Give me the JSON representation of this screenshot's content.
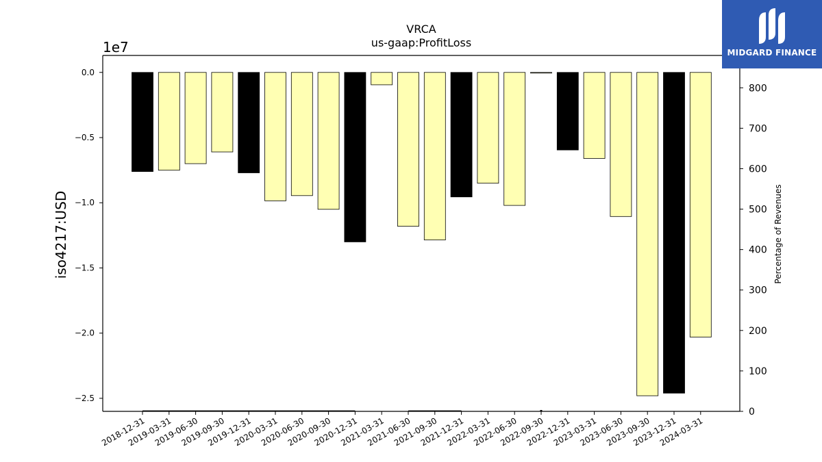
{
  "chart_data": {
    "type": "bar",
    "title": "VRCA",
    "subtitle": "us-gaap:ProfitLoss",
    "ylabel": "iso4217:USD",
    "y_offset_label": "1e7",
    "y2label": "Percentage of Revenues",
    "ylim": [
      -26000000,
      1300000
    ],
    "y2lim": [
      0,
      880
    ],
    "yticks": [
      {
        "v": 0,
        "label": "0.0"
      },
      {
        "v": -5000000,
        "label": "−0.5"
      },
      {
        "v": -10000000,
        "label": "−1.0"
      },
      {
        "v": -15000000,
        "label": "−1.5"
      },
      {
        "v": -20000000,
        "label": "−2.0"
      },
      {
        "v": -25000000,
        "label": "−2.5"
      }
    ],
    "y2ticks": [
      {
        "v": 0,
        "label": "0"
      },
      {
        "v": 100,
        "label": "100"
      },
      {
        "v": 200,
        "label": "200"
      },
      {
        "v": 300,
        "label": "300"
      },
      {
        "v": 400,
        "label": "400"
      },
      {
        "v": 500,
        "label": "500"
      },
      {
        "v": 600,
        "label": "600"
      },
      {
        "v": 700,
        "label": "700"
      },
      {
        "v": 800,
        "label": "800"
      }
    ],
    "categories": [
      "2018-12-31",
      "2019-03-31",
      "2019-06-30",
      "2019-09-30",
      "2019-12-31",
      "2020-03-31",
      "2020-06-30",
      "2020-09-30",
      "2020-12-31",
      "2021-03-31",
      "2021-06-30",
      "2021-09-30",
      "2021-12-31",
      "2022-03-31",
      "2022-06-30",
      "2022-09-30",
      "2022-12-31",
      "2023-03-31",
      "2023-06-30",
      "2023-09-30",
      "2023-12-31",
      "2024-03-31"
    ],
    "values": [
      -7600000,
      -7500000,
      -7000000,
      -6100000,
      -7700000,
      -9850000,
      -9450000,
      -10500000,
      -13000000,
      -950000,
      -11800000,
      -12850000,
      -9550000,
      -8500000,
      -10200000,
      -50000,
      -5950000,
      -6600000,
      -11050000,
      -24800000,
      -24600000,
      -20300000
    ],
    "annual": [
      true,
      false,
      false,
      false,
      true,
      false,
      false,
      false,
      true,
      false,
      false,
      false,
      true,
      false,
      false,
      false,
      true,
      false,
      false,
      false,
      true,
      false
    ],
    "pct_of_revenues": [
      1,
      1,
      1,
      1,
      1,
      1,
      1,
      1,
      1,
      null,
      1,
      1,
      1,
      null,
      null,
      2,
      null,
      null,
      null,
      null,
      null,
      null
    ],
    "colors": {
      "annual": "#000000",
      "quarterly": "#ffffb3",
      "edge": "#000000"
    }
  },
  "logo": {
    "text": "MIDGARD FINANCE",
    "bg": "#2f5bb3"
  }
}
